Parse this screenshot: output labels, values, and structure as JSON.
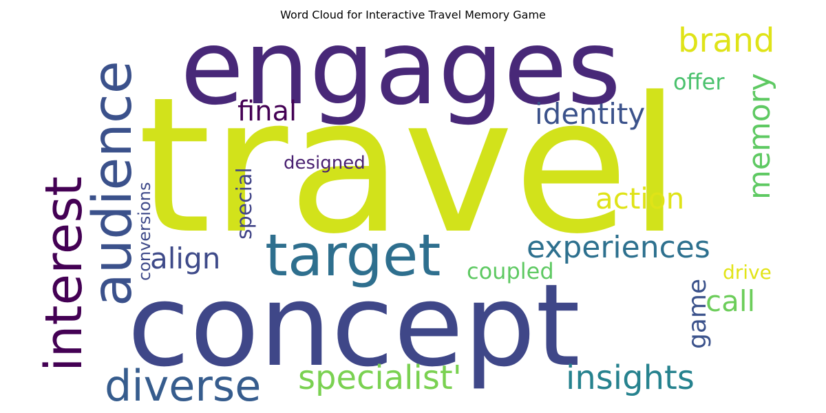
{
  "title": "Word Cloud for Interactive Travel Memory Game",
  "words": [
    {
      "text": "travel",
      "color": "#d2e21b"
    },
    {
      "text": "engages",
      "color": "#482878"
    },
    {
      "text": "concept",
      "color": "#3f4788"
    },
    {
      "text": "target",
      "color": "#2e6f8e"
    },
    {
      "text": "audience",
      "color": "#3b518b"
    },
    {
      "text": "interest",
      "color": "#440154"
    },
    {
      "text": "diverse",
      "color": "#365c8d"
    },
    {
      "text": "specialist'",
      "color": "#7ad151"
    },
    {
      "text": "insights",
      "color": "#26828e"
    },
    {
      "text": "experiences",
      "color": "#2d708e"
    },
    {
      "text": "brand",
      "color": "#dfe318"
    },
    {
      "text": "memory",
      "color": "#5ec962"
    },
    {
      "text": "identity",
      "color": "#3b528b"
    },
    {
      "text": "final",
      "color": "#440154"
    },
    {
      "text": "offer",
      "color": "#4ac16d"
    },
    {
      "text": "action",
      "color": "#dfe318"
    },
    {
      "text": "align",
      "color": "#3e4a89"
    },
    {
      "text": "special",
      "color": "#414487"
    },
    {
      "text": "designed",
      "color": "#481f70"
    },
    {
      "text": "conversions",
      "color": "#3e4989"
    },
    {
      "text": "coupled",
      "color": "#5ec962"
    },
    {
      "text": "call",
      "color": "#6ccd5a"
    },
    {
      "text": "game",
      "color": "#3b528b"
    },
    {
      "text": "drive",
      "color": "#e2e418"
    }
  ]
}
